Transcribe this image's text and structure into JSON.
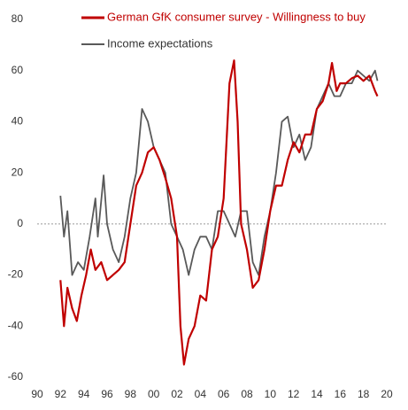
{
  "chart_data": {
    "type": "line",
    "series": [
      {
        "name": "German GfK consumer survey - Willingness to buy",
        "color": "#c00000",
        "x": [
          1992.0,
          1992.3,
          1992.6,
          1993.0,
          1993.4,
          1993.8,
          1994.2,
          1994.6,
          1995.0,
          1995.5,
          1996.0,
          1996.5,
          1997.0,
          1997.5,
          1998.0,
          1998.5,
          1999.0,
          1999.5,
          2000.0,
          2000.5,
          2001.0,
          2001.5,
          2002.0,
          2002.3,
          2002.6,
          2003.0,
          2003.5,
          2004.0,
          2004.5,
          2005.0,
          2005.5,
          2006.0,
          2006.5,
          2006.9,
          2007.2,
          2007.5,
          2008.0,
          2008.5,
          2009.0,
          2009.5,
          2010.0,
          2010.5,
          2011.0,
          2011.5,
          2012.0,
          2012.5,
          2013.0,
          2013.5,
          2014.0,
          2014.5,
          2015.0,
          2015.3,
          2015.7,
          2016.0,
          2016.5,
          2017.0,
          2017.5,
          2018.0,
          2018.5,
          2019.0,
          2019.2
        ],
        "values": [
          -22,
          -40,
          -25,
          -33,
          -38,
          -28,
          -20,
          -10,
          -18,
          -15,
          -22,
          -20,
          -18,
          -15,
          0,
          15,
          20,
          28,
          30,
          25,
          18,
          10,
          -5,
          -40,
          -55,
          -45,
          -40,
          -28,
          -30,
          -10,
          -5,
          10,
          55,
          64,
          40,
          0,
          -10,
          -25,
          -22,
          -10,
          5,
          15,
          15,
          25,
          32,
          28,
          35,
          35,
          45,
          48,
          55,
          63,
          52,
          55,
          55,
          57,
          58,
          56,
          58,
          52,
          50
        ]
      },
      {
        "name": "Income expectations",
        "color": "#595959",
        "x": [
          1992.0,
          1992.3,
          1992.6,
          1993.0,
          1993.5,
          1994.0,
          1994.5,
          1995.0,
          1995.2,
          1995.7,
          1996.0,
          1996.5,
          1997.0,
          1997.5,
          1998.0,
          1998.5,
          1999.0,
          1999.5,
          2000.0,
          2000.5,
          2001.0,
          2001.5,
          2002.0,
          2002.5,
          2003.0,
          2003.5,
          2004.0,
          2004.5,
          2005.0,
          2005.5,
          2006.0,
          2006.5,
          2007.0,
          2007.5,
          2008.0,
          2008.5,
          2009.0,
          2009.5,
          2010.0,
          2010.5,
          2011.0,
          2011.5,
          2012.0,
          2012.5,
          2013.0,
          2013.5,
          2014.0,
          2014.5,
          2015.0,
          2015.5,
          2016.0,
          2016.5,
          2017.0,
          2017.5,
          2018.0,
          2018.5,
          2019.0,
          2019.2
        ],
        "values": [
          11,
          -5,
          5,
          -20,
          -15,
          -18,
          -5,
          10,
          -5,
          19,
          0,
          -10,
          -15,
          -5,
          10,
          20,
          45,
          40,
          30,
          25,
          20,
          0,
          -5,
          -10,
          -20,
          -10,
          -5,
          -5,
          -10,
          5,
          5,
          0,
          -5,
          5,
          5,
          -15,
          -20,
          -5,
          5,
          20,
          40,
          42,
          30,
          35,
          25,
          30,
          45,
          50,
          55,
          50,
          50,
          55,
          55,
          60,
          58,
          56,
          60,
          56
        ]
      }
    ],
    "xlim": [
      1990,
      2020
    ],
    "xticks": [
      {
        "value": 1990,
        "label": "90"
      },
      {
        "value": 1992,
        "label": "92"
      },
      {
        "value": 1994,
        "label": "94"
      },
      {
        "value": 1996,
        "label": "96"
      },
      {
        "value": 1998,
        "label": "98"
      },
      {
        "value": 2000,
        "label": "00"
      },
      {
        "value": 2002,
        "label": "02"
      },
      {
        "value": 2004,
        "label": "04"
      },
      {
        "value": 2006,
        "label": "06"
      },
      {
        "value": 2008,
        "label": "08"
      },
      {
        "value": 2010,
        "label": "10"
      },
      {
        "value": 2012,
        "label": "12"
      },
      {
        "value": 2014,
        "label": "14"
      },
      {
        "value": 2016,
        "label": "16"
      },
      {
        "value": 2018,
        "label": "18"
      },
      {
        "value": 2020,
        "label": "20"
      }
    ],
    "ylim": [
      -60,
      80
    ],
    "yticks": [
      -60,
      -40,
      -20,
      0,
      20,
      40,
      60,
      80
    ]
  }
}
